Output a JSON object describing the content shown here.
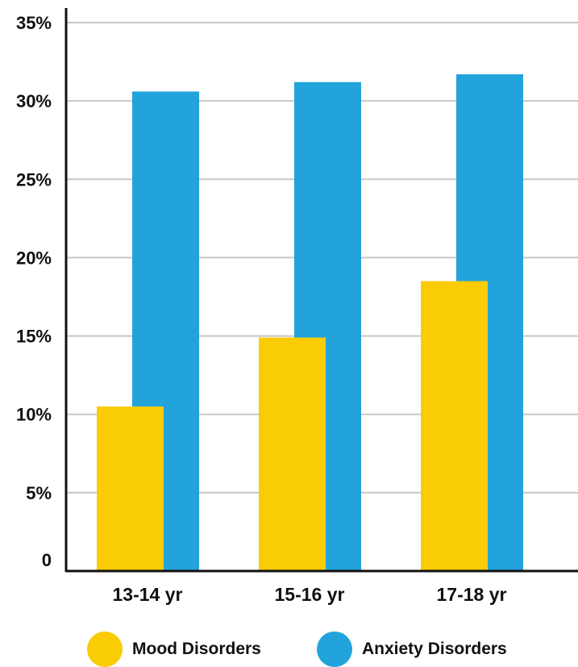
{
  "chart_data": {
    "type": "bar",
    "categories": [
      "13-14 yr",
      "15-16 yr",
      "17-18 yr"
    ],
    "series": [
      {
        "name": "Mood Disorders",
        "values": [
          10.5,
          14.9,
          18.5
        ],
        "color": "#FACC06"
      },
      {
        "name": "Anxiety Disorders",
        "values": [
          30.6,
          31.2,
          31.7
        ],
        "color": "#22A3DC"
      }
    ],
    "ylim": [
      0,
      35
    ],
    "yticks": [
      0,
      5,
      10,
      15,
      20,
      25,
      30,
      35
    ],
    "ytick_labels": [
      "0",
      "5%",
      "10%",
      "15%",
      "20%",
      "25%",
      "30%",
      "35%"
    ],
    "grid": true,
    "legend_position": "bottom"
  }
}
